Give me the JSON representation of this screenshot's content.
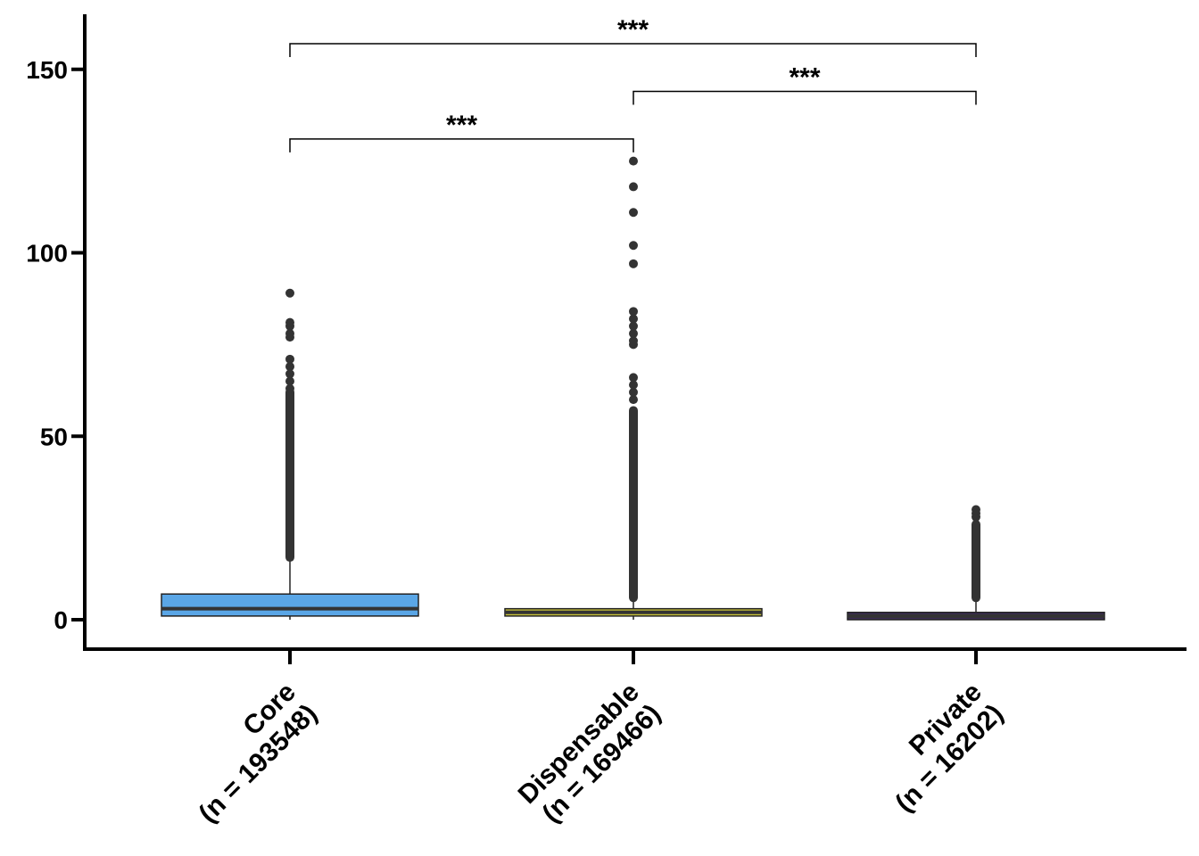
{
  "chart_data": {
    "type": "box",
    "title": "",
    "xlabel": "",
    "ylabel": "",
    "ylim": [
      -7.5,
      165
    ],
    "yticks": [
      0,
      50,
      100,
      150
    ],
    "categories": [
      {
        "line1": "Core",
        "line2": "(n = 193548)"
      },
      {
        "line1": "Dispensable",
        "line2": "(n = 169466)"
      },
      {
        "line1": "Private",
        "line2": "(n = 16202)"
      }
    ],
    "boxes": [
      {
        "name": "Core",
        "color": "#5aa6e6",
        "min": 0,
        "q1": 1,
        "median": 3,
        "q3": 7,
        "whisker_high": 16,
        "outliers_dense": [
          17,
          62
        ],
        "outliers_sparse": [
          63,
          65,
          67,
          69,
          71,
          77,
          78,
          80,
          81,
          89
        ]
      },
      {
        "name": "Dispensable",
        "color": "#c9c23a",
        "min": 0,
        "q1": 1,
        "median": 2,
        "q3": 3,
        "whisker_high": 6,
        "outliers_dense": [
          6,
          57
        ],
        "outliers_sparse": [
          60,
          62,
          64,
          66,
          75,
          76,
          78,
          80,
          82,
          84,
          97,
          102,
          111,
          118,
          125
        ]
      },
      {
        "name": "Private",
        "color": "#3c2d54",
        "min": 0,
        "q1": 0,
        "median": 1,
        "q3": 2,
        "whisker_high": 5,
        "outliers_dense": [
          6,
          26
        ],
        "outliers_sparse": [
          28,
          29,
          30
        ]
      }
    ],
    "significance": [
      {
        "from": 0,
        "to": 1,
        "y": 131,
        "label": "***"
      },
      {
        "from": 1,
        "to": 2,
        "y": 144,
        "label": "***"
      },
      {
        "from": 0,
        "to": 2,
        "y": 157,
        "label": "***"
      }
    ]
  }
}
